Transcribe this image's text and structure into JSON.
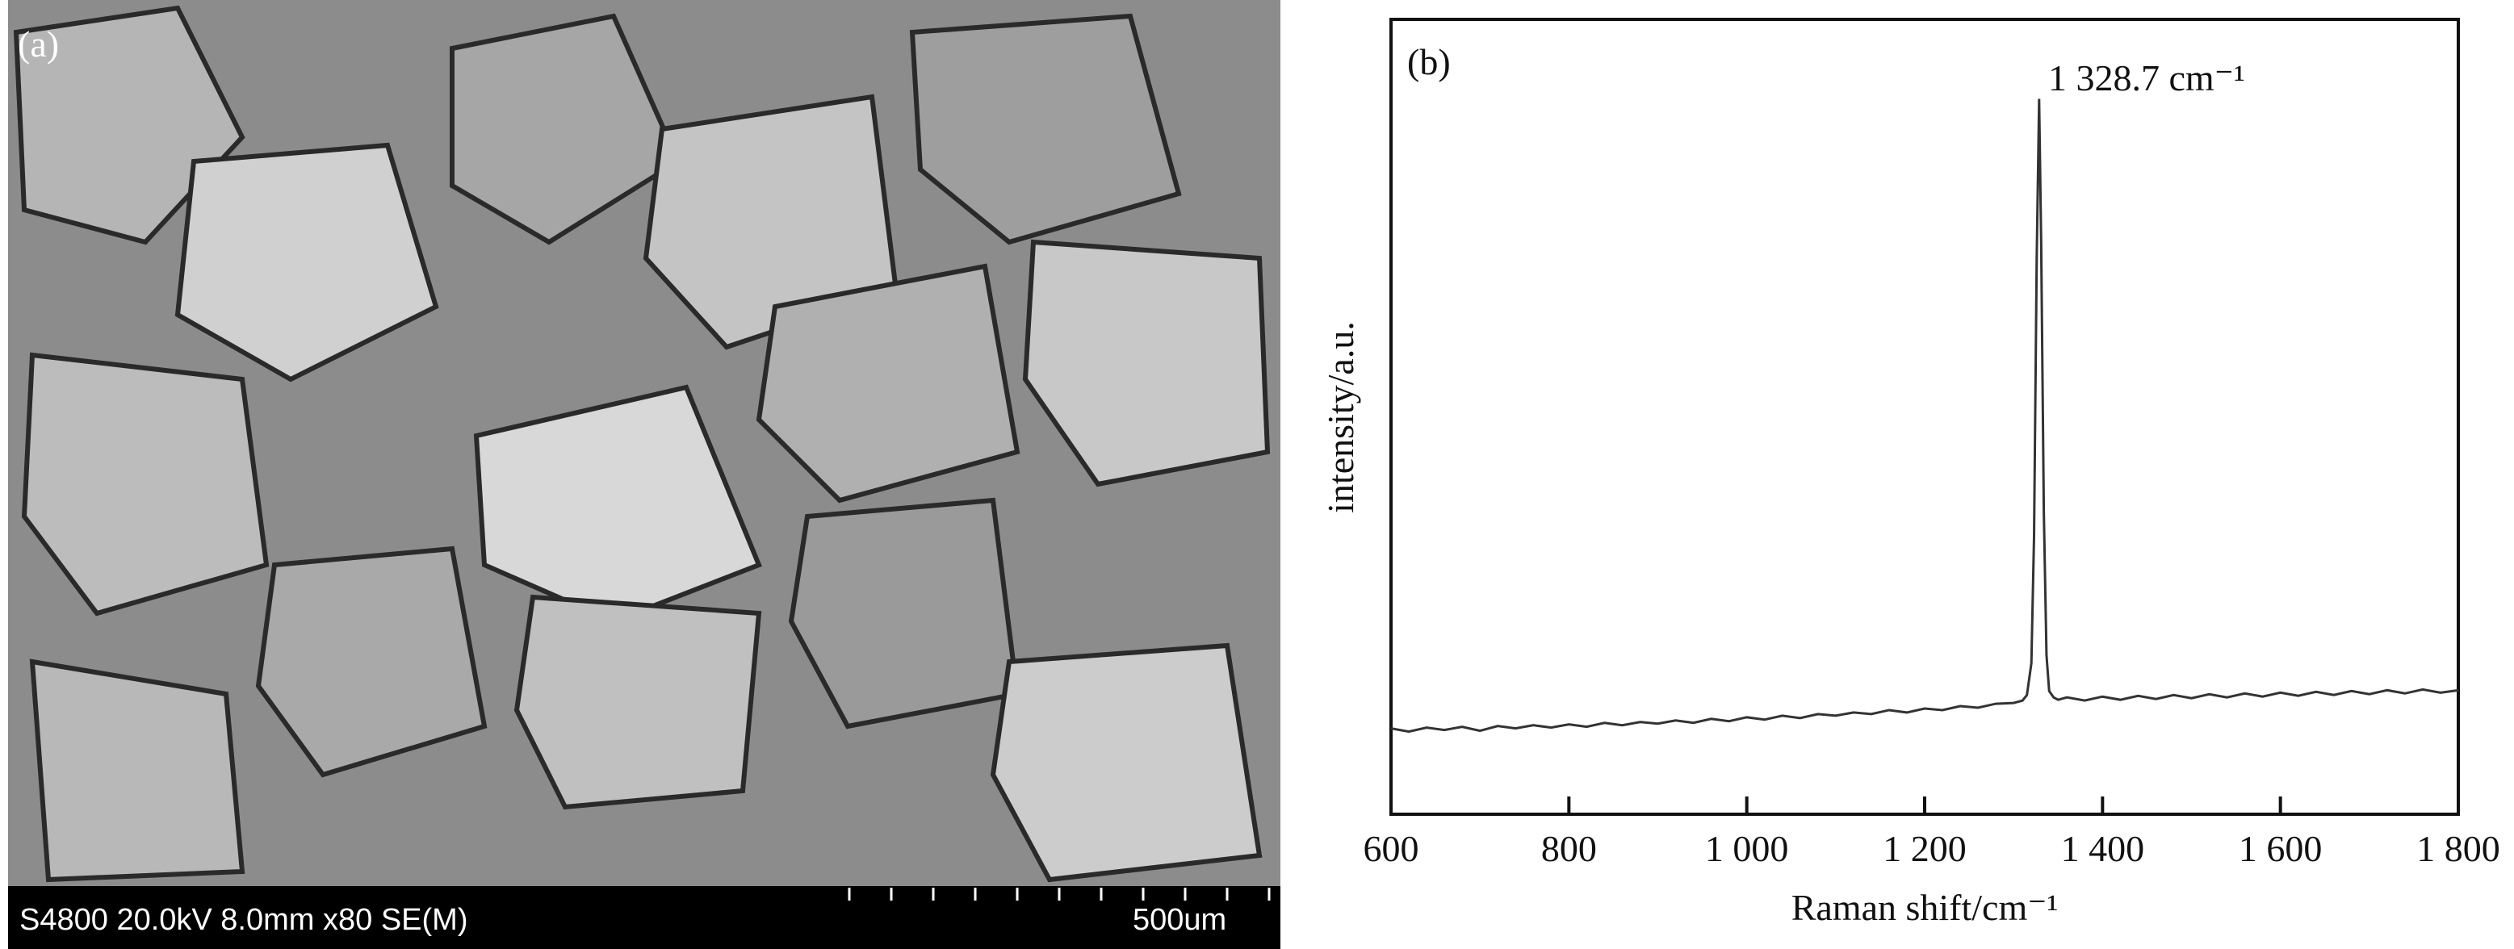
{
  "image_panel": {
    "label": "(a)",
    "info": "S4800 20.0kV 8.0mm x80 SE(M)",
    "scale_label": "500um"
  },
  "chart_data": {
    "type": "line",
    "label": "(b)",
    "annotation": "1 328.7 cm⁻¹",
    "xlabel": "Raman shift/cm⁻¹",
    "ylabel": "intensity/a.u.",
    "color": "#333333",
    "x": [
      600,
      620,
      640,
      660,
      680,
      700,
      720,
      740,
      760,
      780,
      800,
      820,
      840,
      860,
      880,
      900,
      920,
      940,
      960,
      980,
      1000,
      1020,
      1040,
      1060,
      1080,
      1100,
      1120,
      1140,
      1160,
      1180,
      1200,
      1220,
      1240,
      1260,
      1280,
      1300,
      1310,
      1315,
      1320,
      1323,
      1326,
      1328.7,
      1331,
      1334,
      1337,
      1340,
      1345,
      1350,
      1360,
      1380,
      1400,
      1420,
      1440,
      1460,
      1480,
      1500,
      1520,
      1540,
      1560,
      1580,
      1600,
      1620,
      1640,
      1660,
      1680,
      1700,
      1720,
      1740,
      1760,
      1780,
      1800
    ],
    "values": [
      0.108,
      0.104,
      0.109,
      0.106,
      0.11,
      0.105,
      0.111,
      0.108,
      0.112,
      0.109,
      0.113,
      0.11,
      0.115,
      0.112,
      0.116,
      0.114,
      0.118,
      0.115,
      0.12,
      0.117,
      0.122,
      0.119,
      0.124,
      0.121,
      0.126,
      0.124,
      0.128,
      0.126,
      0.131,
      0.128,
      0.133,
      0.131,
      0.136,
      0.134,
      0.139,
      0.14,
      0.143,
      0.15,
      0.19,
      0.35,
      0.7,
      0.9,
      0.72,
      0.38,
      0.2,
      0.155,
      0.147,
      0.144,
      0.147,
      0.143,
      0.148,
      0.144,
      0.149,
      0.145,
      0.15,
      0.146,
      0.151,
      0.147,
      0.152,
      0.148,
      0.153,
      0.149,
      0.154,
      0.15,
      0.155,
      0.151,
      0.156,
      0.152,
      0.157,
      0.153,
      0.156
    ],
    "xlim": [
      600,
      1800
    ],
    "xticks": [
      600,
      800,
      {
        "value": 1000,
        "label": "1 000"
      },
      {
        "value": 1200,
        "label": "1 200"
      },
      {
        "value": 1400,
        "label": "1 400"
      },
      {
        "value": 1600,
        "label": "1 600"
      },
      {
        "value": 1800,
        "label": "1 800"
      }
    ],
    "ylim": [
      0,
      1
    ]
  }
}
